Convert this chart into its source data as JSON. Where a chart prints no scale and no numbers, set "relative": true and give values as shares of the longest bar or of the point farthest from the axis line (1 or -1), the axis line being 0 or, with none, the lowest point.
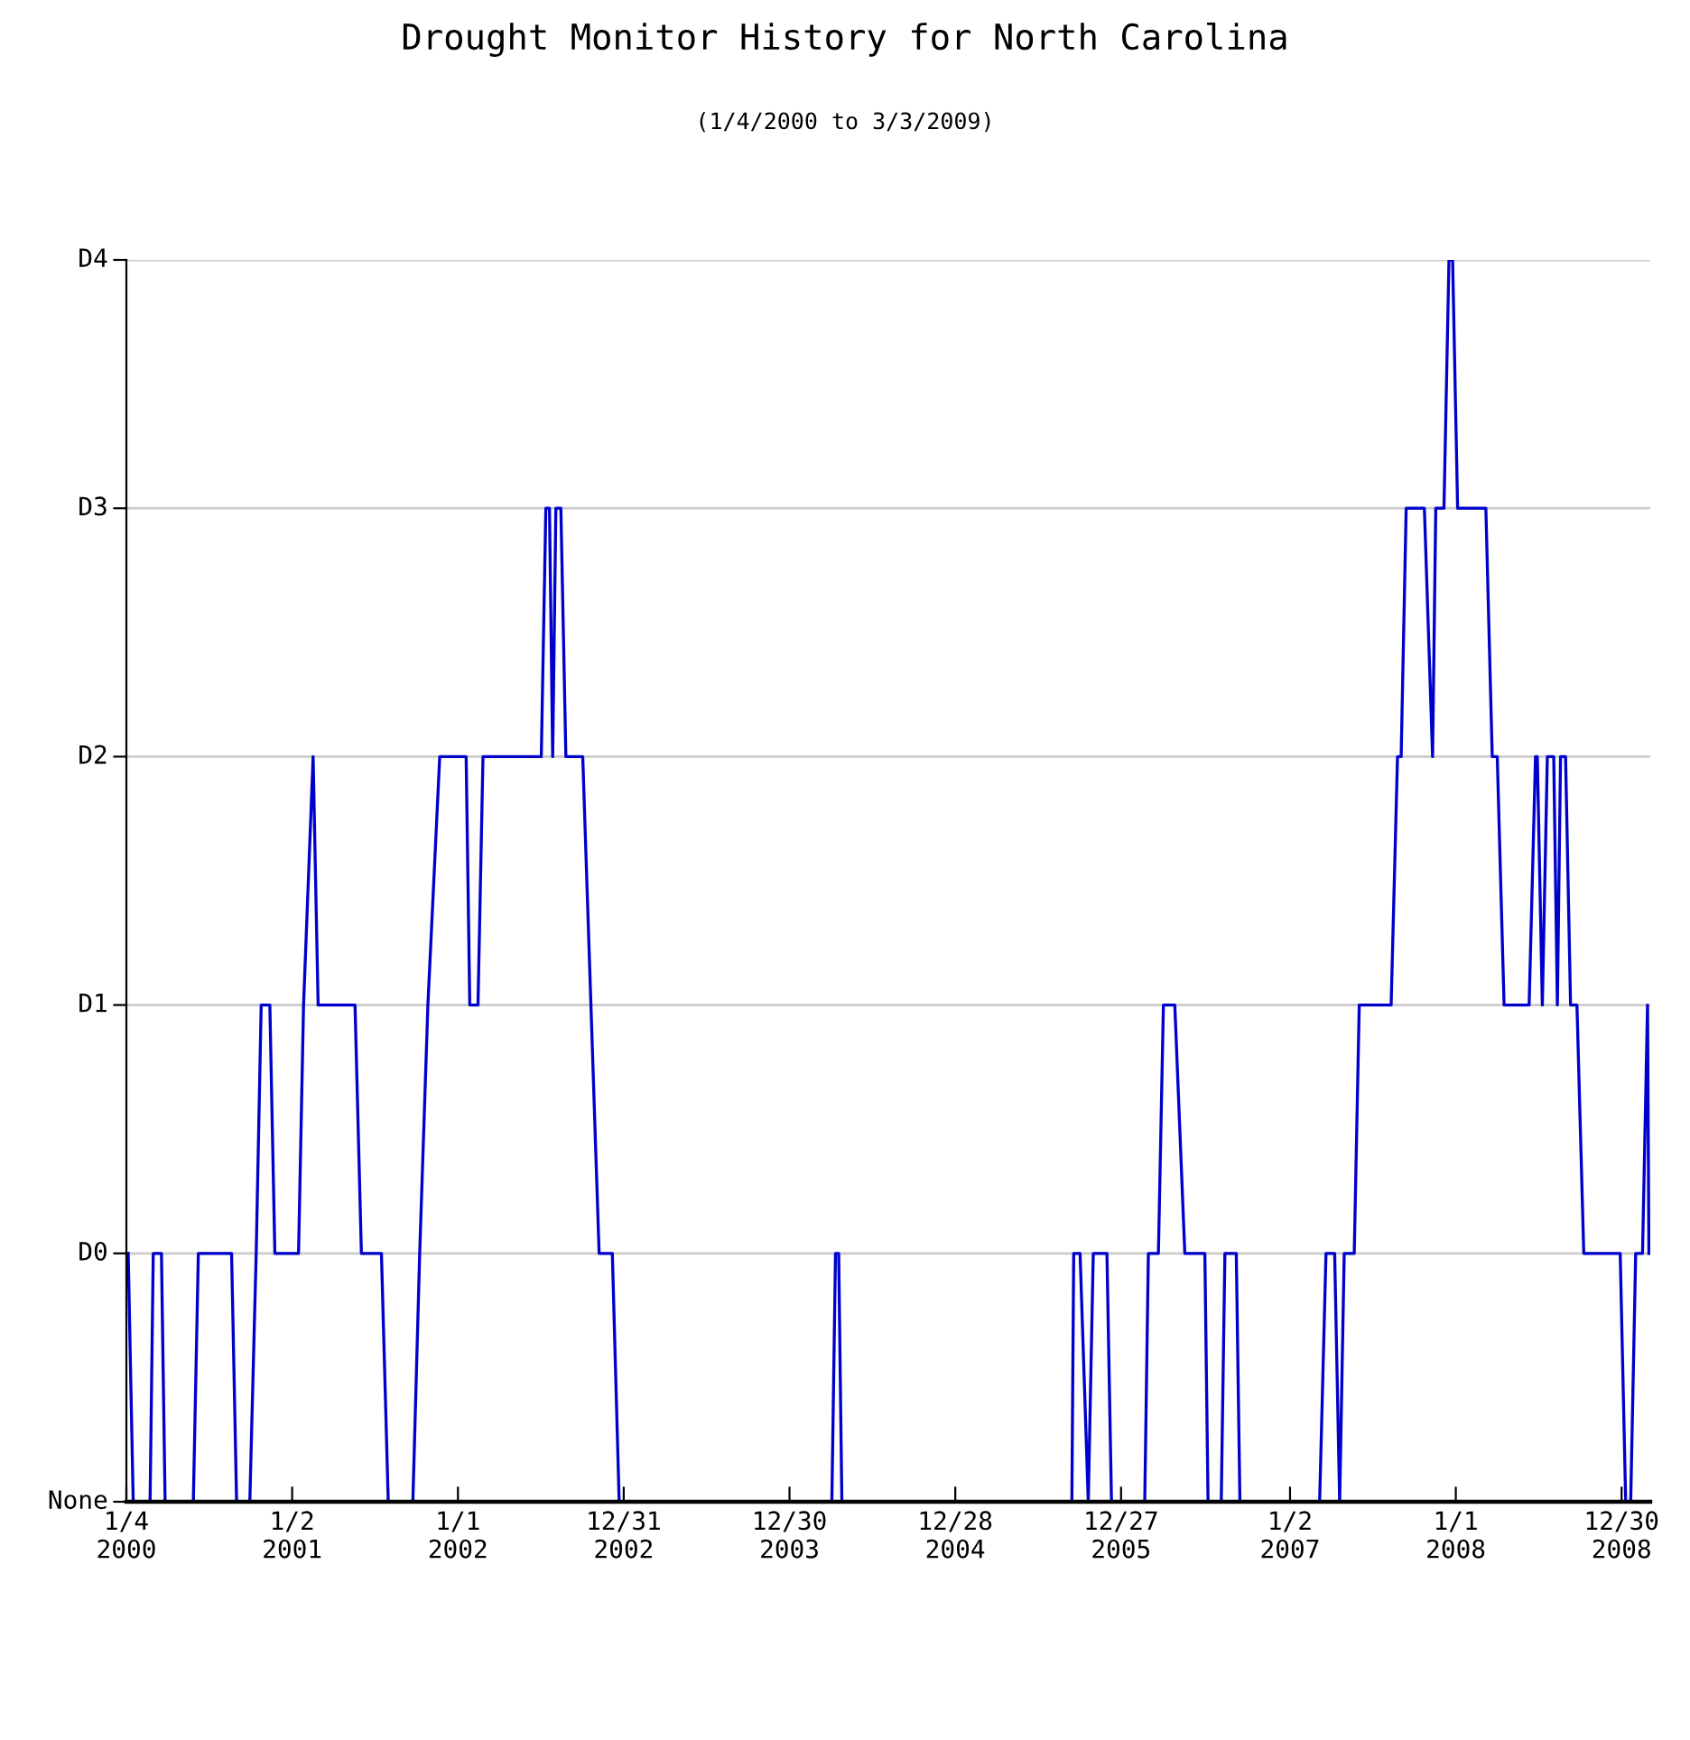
{
  "chart_data": {
    "type": "line",
    "title": "Drought Monitor History for North Carolina",
    "subtitle": "(1/4/2000 to 3/3/2009)",
    "x": [
      "2000-01-08",
      "2000-01-19",
      "2000-02-25",
      "2000-03-03",
      "2000-03-21",
      "2000-03-29",
      "2000-05-30",
      "2000-06-10",
      "2000-08-22",
      "2000-09-02",
      "2000-10-01",
      "2000-10-15",
      "2000-10-26",
      "2000-11-14",
      "2000-11-25",
      "2001-01-16",
      "2001-01-27",
      "2001-02-17",
      "2001-02-28",
      "2001-05-20",
      "2001-06-03",
      "2001-07-17",
      "2001-08-01",
      "2001-09-24",
      "2001-10-09",
      "2001-10-27",
      "2001-11-22",
      "2002-01-19",
      "2002-01-27",
      "2002-02-14",
      "2002-02-25",
      "2002-07-03",
      "2002-07-13",
      "2002-07-21",
      "2002-07-28",
      "2002-08-04",
      "2002-08-15",
      "2002-08-26",
      "2002-10-02",
      "2002-10-20",
      "2002-11-07",
      "2002-12-06",
      "2002-12-21",
      "2004-04-01",
      "2004-04-09",
      "2004-04-16",
      "2004-04-23",
      "2005-09-10",
      "2005-09-14",
      "2005-09-28",
      "2005-10-16",
      "2005-10-27",
      "2005-11-26",
      "2005-12-06",
      "2006-02-17",
      "2006-02-25",
      "2006-03-19",
      "2006-03-30",
      "2006-04-24",
      "2006-05-16",
      "2006-06-29",
      "2006-07-06",
      "2006-08-04",
      "2006-08-12",
      "2006-09-06",
      "2006-09-14",
      "2007-03-08",
      "2007-03-22",
      "2007-04-10",
      "2007-04-21",
      "2007-05-01",
      "2007-05-23",
      "2007-06-03",
      "2007-08-12",
      "2007-08-26",
      "2007-09-03",
      "2007-09-14",
      "2007-10-24",
      "2007-11-11",
      "2007-11-18",
      "2007-12-06",
      "2007-12-17",
      "2007-12-25",
      "2008-01-05",
      "2008-03-07",
      "2008-03-21",
      "2008-04-01",
      "2008-04-16",
      "2008-06-10",
      "2008-06-24",
      "2008-06-28",
      "2008-07-09",
      "2008-07-20",
      "2008-08-03",
      "2008-08-11",
      "2008-08-18",
      "2008-08-29",
      "2008-09-09",
      "2008-09-23",
      "2008-10-08",
      "2008-12-27",
      "2009-01-08",
      "2009-01-19",
      "2009-01-30",
      "2009-02-14",
      "2009-02-25",
      "2009-02-28"
    ],
    "series": [
      {
        "color": "#0000cc",
        "values": [
          0.2,
          0,
          0,
          0.2,
          0.2,
          0,
          0,
          0.2,
          0.2,
          0,
          0,
          0.2,
          0.4,
          0.4,
          0.2,
          0.2,
          0.4,
          0.6,
          0.4,
          0.4,
          0.2,
          0.2,
          0,
          0,
          0.2,
          0.4,
          0.6,
          0.6,
          0.4,
          0.4,
          0.6,
          0.6,
          0.8,
          0.8,
          0.6,
          0.8,
          0.8,
          0.6,
          0.6,
          0.4,
          0.2,
          0.2,
          0,
          0,
          0.2,
          0.2,
          0,
          0,
          0.2,
          0.2,
          0,
          0.2,
          0.2,
          0,
          0,
          0.2,
          0.2,
          0.4,
          0.4,
          0.2,
          0.2,
          0,
          0,
          0.2,
          0.2,
          0,
          0,
          0.2,
          0.2,
          0,
          0.2,
          0.2,
          0.4,
          0.4,
          0.6,
          0.6,
          0.8,
          0.8,
          0.6,
          0.8,
          0.8,
          1,
          1,
          0.8,
          0.8,
          0.6,
          0.6,
          0.4,
          0.4,
          0.6,
          0.6,
          0.4,
          0.6,
          0.6,
          0.4,
          0.6,
          0.6,
          0.4,
          0.4,
          0.2,
          0.2,
          0,
          0,
          0.2,
          0.2,
          0.4,
          0.2
        ]
      }
    ],
    "relative": true,
    "xlim": [
      "2000-01-04",
      "2009-03-03"
    ],
    "xticks": [
      {
        "value": "2000-01-04",
        "label": "1/4\n2000"
      },
      {
        "value": "2001-01-02",
        "label": "1/2\n2001"
      },
      {
        "value": "2002-01-01",
        "label": "1/1\n2002"
      },
      {
        "value": "2002-12-31",
        "label": "12/31\n2002"
      },
      {
        "value": "2003-12-30",
        "label": "12/30\n2003"
      },
      {
        "value": "2004-12-28",
        "label": "12/28\n2004"
      },
      {
        "value": "2005-12-27",
        "label": "12/27\n2005"
      },
      {
        "value": "2007-01-02",
        "label": "1/2\n2007"
      },
      {
        "value": "2008-01-01",
        "label": "1/1\n2008"
      },
      {
        "value": "2008-12-30",
        "label": "12/30\n2008"
      }
    ],
    "ref_lines": [
      {
        "axis": "y",
        "value": 0,
        "label": "None",
        "color": "#000000"
      },
      {
        "axis": "y",
        "value": 0.2,
        "label": "D0",
        "color": "#cccccc"
      },
      {
        "axis": "y",
        "value": 0.4,
        "label": "D1",
        "color": "#cccccc"
      },
      {
        "axis": "y",
        "value": 0.6,
        "label": "D2",
        "color": "#cccccc"
      },
      {
        "axis": "y",
        "value": 0.8,
        "label": "D3",
        "color": "#cccccc"
      },
      {
        "axis": "y",
        "value": 1,
        "label": "D4",
        "color": "#cccccc"
      }
    ],
    "line_style": "solid"
  }
}
